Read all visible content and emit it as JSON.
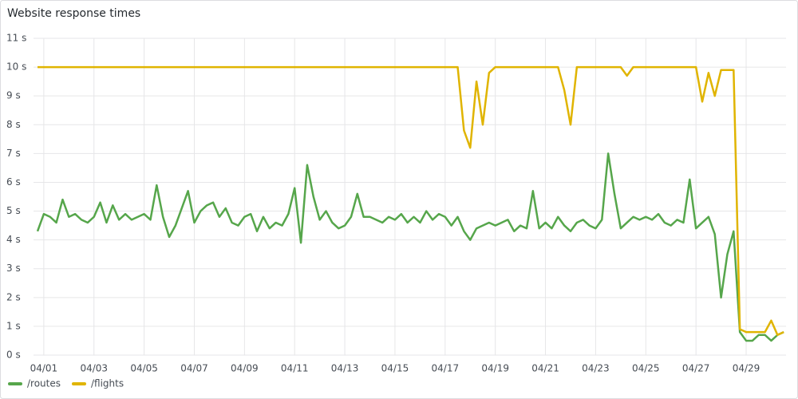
{
  "chart_data": {
    "type": "line",
    "title": "Website response times",
    "x": [
      0.75,
      1,
      1.25,
      1.5,
      1.75,
      2,
      2.25,
      2.5,
      2.75,
      3,
      3.25,
      3.5,
      3.75,
      4,
      4.25,
      4.5,
      4.75,
      5,
      5.25,
      5.5,
      5.75,
      6,
      6.25,
      6.5,
      6.75,
      7,
      7.25,
      7.5,
      7.75,
      8,
      8.25,
      8.5,
      8.75,
      9,
      9.25,
      9.5,
      9.75,
      10,
      10.25,
      10.5,
      10.75,
      11,
      11.25,
      11.5,
      11.75,
      12,
      12.25,
      12.5,
      12.75,
      13,
      13.25,
      13.5,
      13.75,
      14,
      14.25,
      14.5,
      14.75,
      15,
      15.25,
      15.5,
      15.75,
      16,
      16.25,
      16.5,
      16.75,
      17,
      17.25,
      17.5,
      17.75,
      18,
      18.25,
      18.5,
      18.75,
      19,
      19.25,
      19.5,
      19.75,
      20,
      20.25,
      20.5,
      20.75,
      21,
      21.25,
      21.5,
      21.75,
      22,
      22.25,
      22.5,
      22.75,
      23,
      23.25,
      23.5,
      23.75,
      24,
      24.25,
      24.5,
      24.75,
      25,
      25.25,
      25.5,
      25.75,
      26,
      26.25,
      26.5,
      26.75,
      27,
      27.25,
      27.5,
      27.75,
      28,
      28.25,
      28.5,
      28.75,
      29,
      29.25,
      29.5,
      29.75,
      30,
      30.25,
      30.5
    ],
    "series": [
      {
        "name": "/routes",
        "color": "#56a64b",
        "values": [
          4.3,
          4.9,
          4.8,
          4.6,
          5.4,
          4.8,
          4.9,
          4.7,
          4.6,
          4.8,
          5.3,
          4.6,
          5.2,
          4.7,
          4.9,
          4.7,
          4.8,
          4.9,
          4.7,
          5.9,
          4.8,
          4.1,
          4.5,
          5.1,
          5.7,
          4.6,
          5.0,
          5.2,
          5.3,
          4.8,
          5.1,
          4.6,
          4.5,
          4.8,
          4.9,
          4.3,
          4.8,
          4.4,
          4.6,
          4.5,
          4.9,
          5.8,
          3.9,
          6.6,
          5.5,
          4.7,
          5.0,
          4.6,
          4.4,
          4.5,
          4.8,
          5.6,
          4.8,
          4.8,
          4.7,
          4.6,
          4.8,
          4.7,
          4.9,
          4.6,
          4.8,
          4.6,
          5.0,
          4.7,
          4.9,
          4.8,
          4.5,
          4.8,
          4.3,
          4.0,
          4.4,
          4.5,
          4.6,
          4.5,
          4.6,
          4.7,
          4.3,
          4.5,
          4.4,
          5.7,
          4.4,
          4.6,
          4.4,
          4.8,
          4.5,
          4.3,
          4.6,
          4.7,
          4.5,
          4.4,
          4.7,
          7.0,
          5.6,
          4.4,
          4.6,
          4.8,
          4.7,
          4.8,
          4.7,
          4.9,
          4.6,
          4.5,
          4.7,
          4.6,
          6.1,
          4.4,
          4.6,
          4.8,
          4.2,
          2.0,
          3.5,
          4.3,
          0.8,
          0.5,
          0.5,
          0.7,
          0.7,
          0.5,
          0.7,
          0.8
        ]
      },
      {
        "name": "/flights",
        "color": "#e0b400",
        "values": [
          10,
          10,
          10,
          10,
          10,
          10,
          10,
          10,
          10,
          10,
          10,
          10,
          10,
          10,
          10,
          10,
          10,
          10,
          10,
          10,
          10,
          10,
          10,
          10,
          10,
          10,
          10,
          10,
          10,
          10,
          10,
          10,
          10,
          10,
          10,
          10,
          10,
          10,
          10,
          10,
          10,
          10,
          10,
          10,
          10,
          10,
          10,
          10,
          10,
          10,
          10,
          10,
          10,
          10,
          10,
          10,
          10,
          10,
          10,
          10,
          10,
          10,
          10,
          10,
          10,
          10,
          10,
          10,
          7.8,
          7.2,
          9.5,
          8.0,
          9.8,
          10,
          10,
          10,
          10,
          10,
          10,
          10,
          10,
          10,
          10,
          10,
          9.2,
          8.0,
          10,
          10,
          10,
          10,
          10,
          10,
          10,
          10,
          9.7,
          10,
          10,
          10,
          10,
          10,
          10,
          10,
          10,
          10,
          10,
          10,
          8.8,
          9.8,
          9.0,
          9.9,
          9.9,
          9.9,
          0.9,
          0.8,
          0.8,
          0.8,
          0.8,
          1.2,
          0.7,
          0.8
        ]
      }
    ],
    "xlim": [
      0.59,
      30.59
    ],
    "xticks": [
      {
        "value": 1,
        "label": "04/01"
      },
      {
        "value": 3,
        "label": "04/03"
      },
      {
        "value": 5,
        "label": "04/05"
      },
      {
        "value": 7,
        "label": "04/07"
      },
      {
        "value": 9,
        "label": "04/09"
      },
      {
        "value": 11,
        "label": "04/11"
      },
      {
        "value": 13,
        "label": "04/13"
      },
      {
        "value": 15,
        "label": "04/15"
      },
      {
        "value": 17,
        "label": "04/17"
      },
      {
        "value": 19,
        "label": "04/19"
      },
      {
        "value": 21,
        "label": "04/21"
      },
      {
        "value": 23,
        "label": "04/23"
      },
      {
        "value": 25,
        "label": "04/25"
      },
      {
        "value": 27,
        "label": "04/27"
      },
      {
        "value": 29,
        "label": "04/29"
      }
    ],
    "ylim": [
      0,
      11
    ],
    "yticks": [
      {
        "value": 0,
        "label": "0 s"
      },
      {
        "value": 1,
        "label": "1 s"
      },
      {
        "value": 2,
        "label": "2 s"
      },
      {
        "value": 3,
        "label": "3 s"
      },
      {
        "value": 4,
        "label": "4 s"
      },
      {
        "value": 5,
        "label": "5 s"
      },
      {
        "value": 6,
        "label": "6 s"
      },
      {
        "value": 7,
        "label": "7 s"
      },
      {
        "value": 8,
        "label": "8 s"
      },
      {
        "value": 9,
        "label": "9 s"
      },
      {
        "value": 10,
        "label": "10 s"
      },
      {
        "value": 11,
        "label": "11 s"
      }
    ],
    "grid": true
  }
}
